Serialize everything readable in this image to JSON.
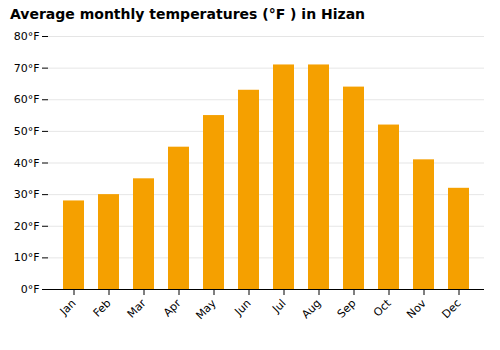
{
  "chart_data": {
    "type": "bar",
    "title": "Average monthly temperatures (°F ) in Hizan",
    "categories": [
      "Jan",
      "Feb",
      "Mar",
      "Apr",
      "May",
      "Jun",
      "Jul",
      "Aug",
      "Sep",
      "Oct",
      "Nov",
      "Dec"
    ],
    "values": [
      28,
      30,
      35,
      45,
      55,
      63,
      71,
      71,
      64,
      52,
      41,
      32
    ],
    "color": "#F5A000",
    "ylim": [
      0,
      80
    ],
    "yticks": [
      {
        "value": 0,
        "label": "0°F"
      },
      {
        "value": 10,
        "label": "10°F"
      },
      {
        "value": 20,
        "label": "20°F"
      },
      {
        "value": 30,
        "label": "30°F"
      },
      {
        "value": 40,
        "label": "40°F"
      },
      {
        "value": 50,
        "label": "50°F"
      },
      {
        "value": 60,
        "label": "60°F"
      },
      {
        "value": 70,
        "label": "70°F"
      },
      {
        "value": 80,
        "label": "80°F"
      }
    ],
    "grid": true
  }
}
